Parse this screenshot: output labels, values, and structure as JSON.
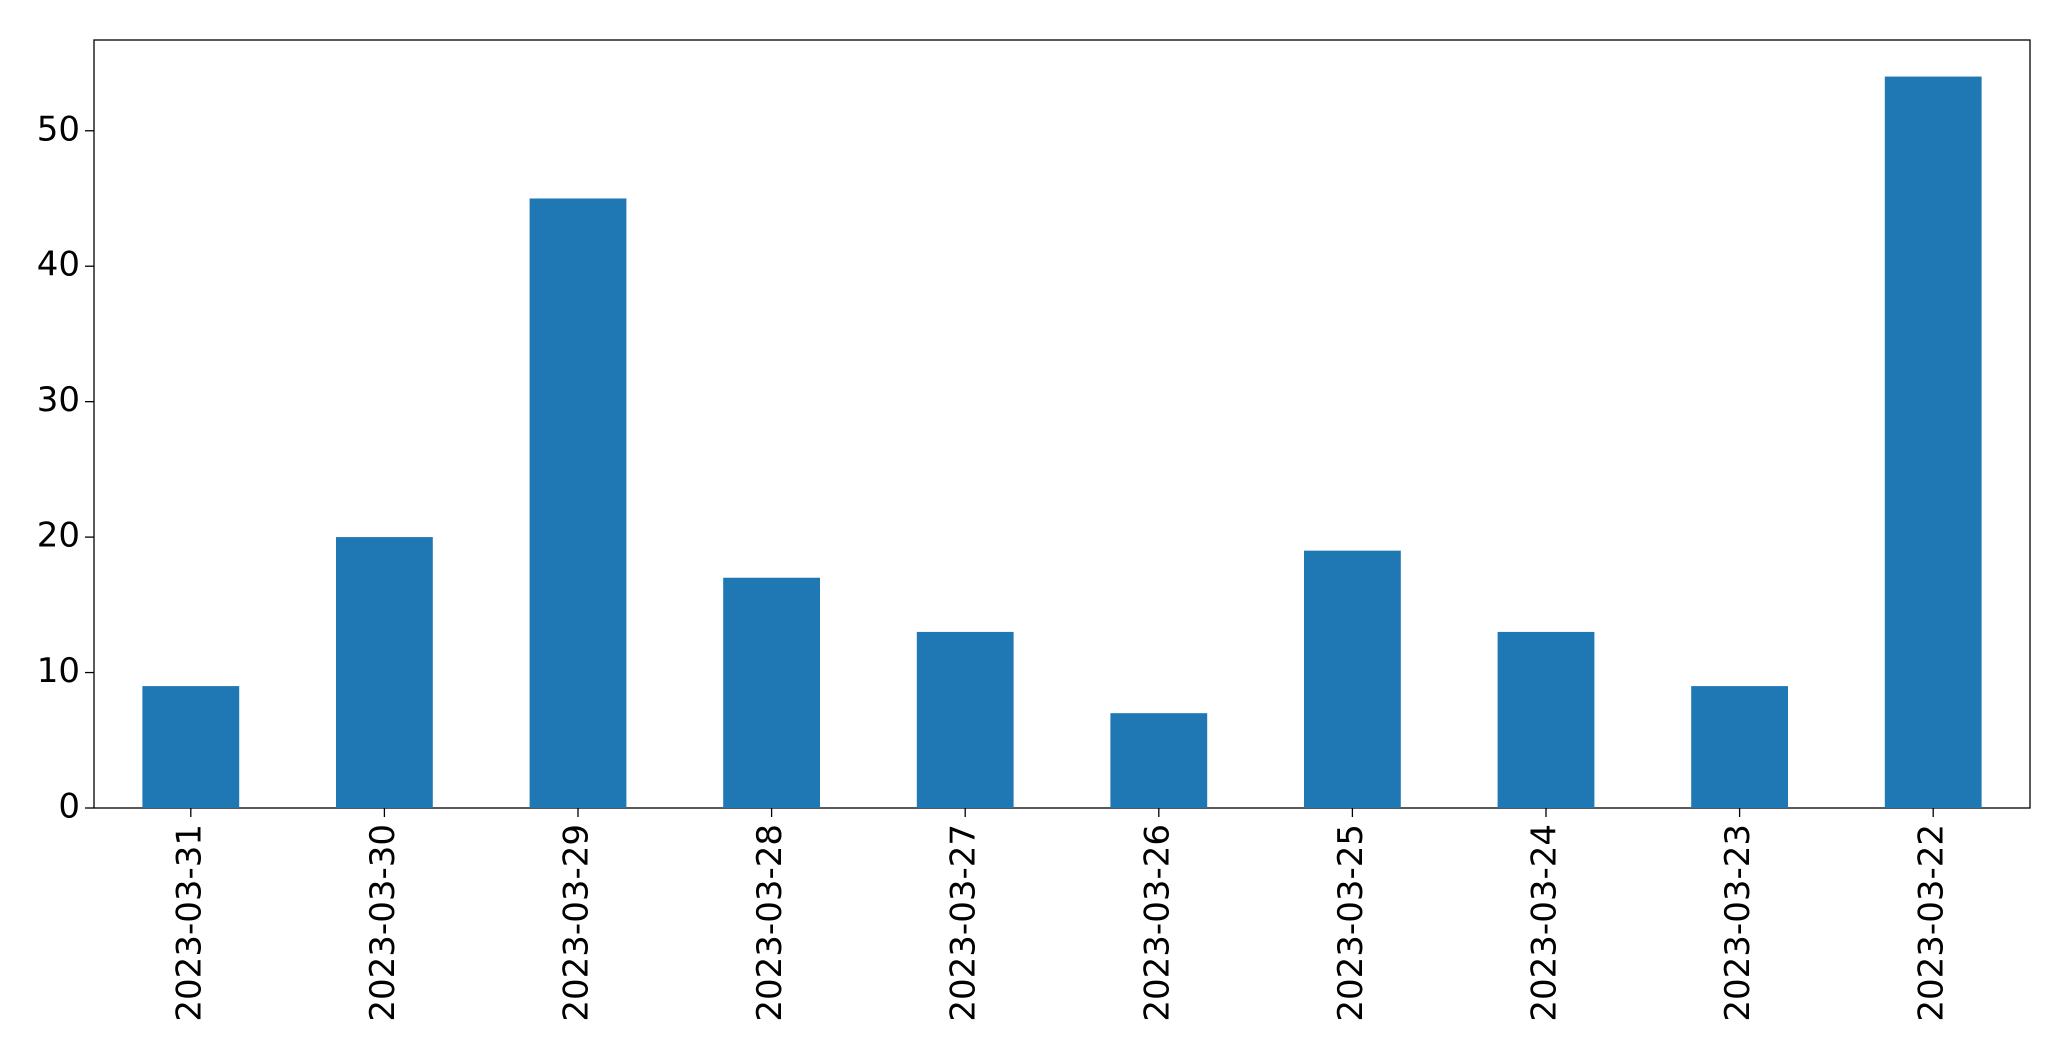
{
  "chart_data": {
    "type": "bar",
    "categories": [
      "2023-03-31",
      "2023-03-30",
      "2023-03-29",
      "2023-03-28",
      "2023-03-27",
      "2023-03-26",
      "2023-03-25",
      "2023-03-24",
      "2023-03-23",
      "2023-03-22"
    ],
    "values": [
      9,
      20,
      45,
      17,
      13,
      7,
      19,
      13,
      9,
      54
    ],
    "color": "#1f77b4",
    "ylim": [
      0,
      56.7
    ],
    "yticks": [
      0,
      10,
      20,
      30,
      40,
      50
    ],
    "grid": false
  }
}
